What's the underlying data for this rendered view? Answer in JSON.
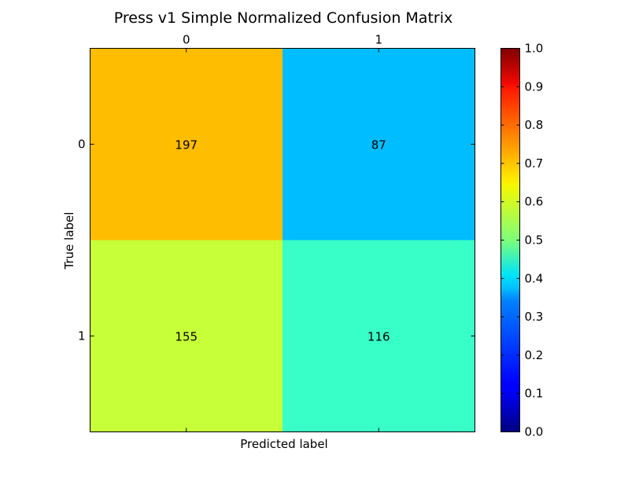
{
  "chart_data": {
    "type": "heatmap",
    "title": "Press v1 Simple Normalized Confusion Matrix",
    "xlabel": "Predicted label",
    "ylabel": "True label",
    "x_categories": [
      "0",
      "1"
    ],
    "y_categories": [
      "0",
      "1"
    ],
    "counts": [
      [
        197,
        87
      ],
      [
        155,
        116
      ]
    ],
    "normalized_values": [
      [
        0.69,
        0.31
      ],
      [
        0.57,
        0.43
      ]
    ],
    "colormap": "jet",
    "colorbar": {
      "range": [
        0.0,
        1.0
      ],
      "ticks": [
        "0.0",
        "0.1",
        "0.2",
        "0.3",
        "0.4",
        "0.5",
        "0.6",
        "0.7",
        "0.8",
        "0.9",
        "1.0"
      ]
    },
    "grid": false
  }
}
